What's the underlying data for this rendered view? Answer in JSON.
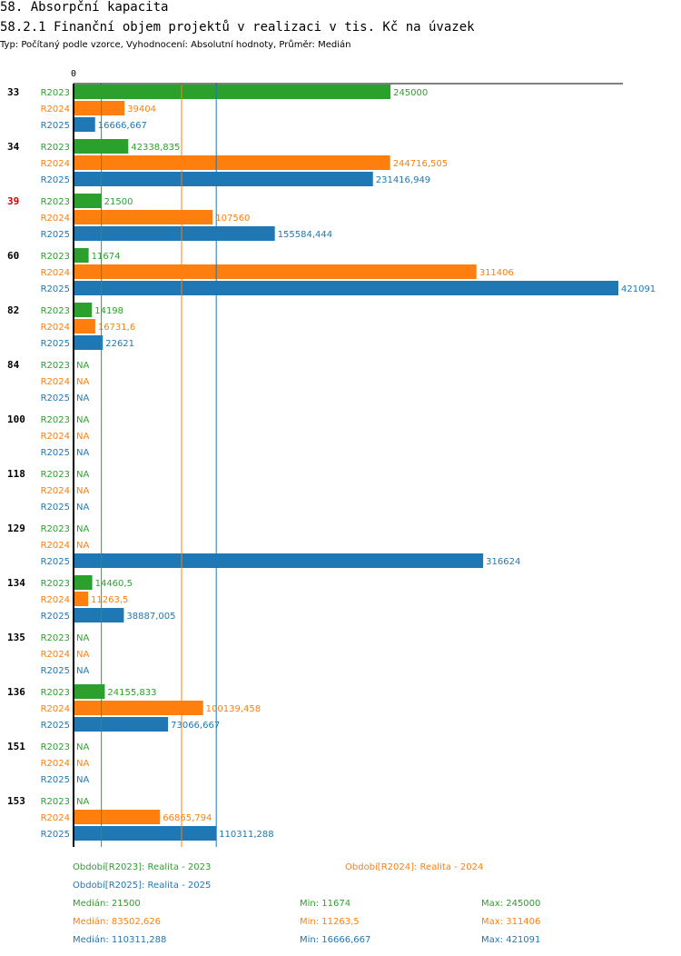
{
  "header": {
    "title": "58. Absorpční kapacita",
    "subtitle": "58.2.1 Finanční objem projektů v realizaci v tis. Kč na úvazek",
    "meta": "Typ: Počítaný podle vzorce, Vyhodnocení: Absolutní hodnoty, Průměr: Medián"
  },
  "colors": {
    "R2023": "#2ca02c",
    "R2024": "#ff7f0e",
    "R2025": "#1f77b4",
    "highlight": "#cc0000",
    "axis": "#000000"
  },
  "chart_data": {
    "type": "bar",
    "orientation": "horizontal",
    "axis_zero_label": "0",
    "xlim": [
      0,
      421091
    ],
    "series_names": [
      "R2023",
      "R2024",
      "R2025"
    ],
    "groups": [
      {
        "label": "33",
        "highlight": false,
        "values": [
          245000,
          39404,
          16666.667
        ],
        "labels": [
          "245000",
          "39404",
          "16666,667"
        ]
      },
      {
        "label": "34",
        "highlight": false,
        "values": [
          42338.835,
          244716.505,
          231416.949
        ],
        "labels": [
          "42338,835",
          "244716,505",
          "231416,949"
        ]
      },
      {
        "label": "39",
        "highlight": true,
        "values": [
          21500,
          107560,
          155584.444
        ],
        "labels": [
          "21500",
          "107560",
          "155584,444"
        ]
      },
      {
        "label": "60",
        "highlight": false,
        "values": [
          11674,
          311406,
          421091
        ],
        "labels": [
          "11674",
          "311406",
          "421091"
        ]
      },
      {
        "label": "82",
        "highlight": false,
        "values": [
          14198,
          16731.6,
          22621
        ],
        "labels": [
          "14198",
          "16731,6",
          "22621"
        ]
      },
      {
        "label": "84",
        "highlight": false,
        "values": [
          null,
          null,
          null
        ],
        "labels": [
          "NA",
          "NA",
          "NA"
        ]
      },
      {
        "label": "100",
        "highlight": false,
        "values": [
          null,
          null,
          null
        ],
        "labels": [
          "NA",
          "NA",
          "NA"
        ]
      },
      {
        "label": "118",
        "highlight": false,
        "values": [
          null,
          null,
          null
        ],
        "labels": [
          "NA",
          "NA",
          "NA"
        ]
      },
      {
        "label": "129",
        "highlight": false,
        "values": [
          null,
          null,
          316624
        ],
        "labels": [
          "NA",
          "NA",
          "316624"
        ]
      },
      {
        "label": "134",
        "highlight": false,
        "values": [
          14460.5,
          11263.5,
          38887.005
        ],
        "labels": [
          "14460,5",
          "11263,5",
          "38887,005"
        ]
      },
      {
        "label": "135",
        "highlight": false,
        "values": [
          null,
          null,
          null
        ],
        "labels": [
          "NA",
          "NA",
          "NA"
        ]
      },
      {
        "label": "136",
        "highlight": false,
        "values": [
          24155.833,
          100139.458,
          73066.667
        ],
        "labels": [
          "24155,833",
          "100139,458",
          "73066,667"
        ]
      },
      {
        "label": "151",
        "highlight": false,
        "values": [
          null,
          null,
          null
        ],
        "labels": [
          "NA",
          "NA",
          "NA"
        ]
      },
      {
        "label": "153",
        "highlight": false,
        "values": [
          null,
          66865.794,
          110311.288
        ],
        "labels": [
          "NA",
          "66865,794",
          "110311,288"
        ]
      }
    ],
    "medians": [
      {
        "series": "R2023",
        "value": 21500
      },
      {
        "series": "R2024",
        "value": 83502.626
      },
      {
        "series": "R2025",
        "value": 110311.288
      }
    ]
  },
  "legend": {
    "r2023": "Období[R2023]: Realita - 2023",
    "r2024": "Období[R2024]: Realita - 2024",
    "r2025": "Období[R2025]: Realita - 2025"
  },
  "stats": {
    "r2023": {
      "median": "Medián: 21500",
      "min": "Min: 11674",
      "max": "Max: 245000"
    },
    "r2024": {
      "median": "Medián: 83502,626",
      "min": "Min: 11263,5",
      "max": "Max: 311406"
    },
    "r2025": {
      "median": "Medián: 110311,288",
      "min": "Min: 16666,667",
      "max": "Max: 421091"
    }
  }
}
